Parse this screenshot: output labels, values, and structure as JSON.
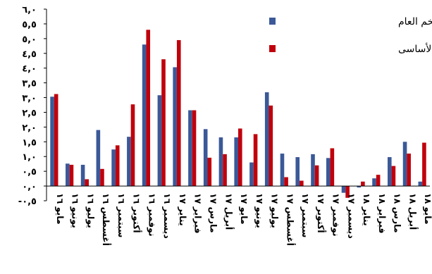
{
  "chart_data": {
    "type": "bar",
    "categories": [
      "مايو ١٦",
      "يونيو ١٦",
      "يوليو ١٦",
      "أغسطس ١٦",
      "سبتمبر ١٦",
      "أكتوبر ١٦",
      "نوفمبر ١٦",
      "ديسمبر ١٦",
      "يناير ١٧",
      "فبراير ١٧",
      "مارس ١٧",
      "أبريل ١٧",
      "مايو ١٧",
      "يونيو ١٧",
      "يوليو ١٧",
      "أغسطس ١٧",
      "سبتمبر ١٧",
      "أكتوبر ١٧",
      "نوفمبر ١٧",
      "ديسمبر ١٧",
      "يناير ١٨",
      "فبراير ١٨",
      "مارس ١٨",
      "أبريل ١٨",
      "مايو ١٨"
    ],
    "series": [
      {
        "name": "معدل التضخم العام",
        "color": "#3b5998",
        "values": [
          3.03,
          0.76,
          0.72,
          1.9,
          1.24,
          1.67,
          4.8,
          3.08,
          4.03,
          2.57,
          1.93,
          1.65,
          1.65,
          0.8,
          3.18,
          1.1,
          0.98,
          1.08,
          0.95,
          -0.23,
          -0.05,
          0.26,
          0.98,
          1.5,
          0.15
        ]
      },
      {
        "name": "معدل التضخم الأساسى",
        "color": "#c0000c",
        "values": [
          3.12,
          0.72,
          0.23,
          0.58,
          1.38,
          2.77,
          5.3,
          4.3,
          4.95,
          2.57,
          0.96,
          1.08,
          1.95,
          1.76,
          2.73,
          0.3,
          0.18,
          0.7,
          1.28,
          -0.4,
          0.15,
          0.38,
          0.68,
          1.1,
          1.47
        ]
      }
    ],
    "ylim": [
      -0.5,
      6.0
    ],
    "yticks": [
      -0.5,
      0.0,
      0.5,
      1.0,
      1.5,
      2.0,
      2.5,
      3.0,
      3.5,
      4.0,
      4.5,
      5.0,
      5.5,
      6.0
    ],
    "ytick_labels": [
      "-٠,٥",
      "٠,٠",
      "٠,٥",
      "١,٠",
      "١,٥",
      "٢,٠",
      "٢,٥",
      "٣,٠",
      "٣,٥",
      "٤,٠",
      "٤,٥",
      "٥,٠",
      "٥,٥",
      "٦,٠"
    ],
    "legend_position": "top-right",
    "grid": false
  }
}
